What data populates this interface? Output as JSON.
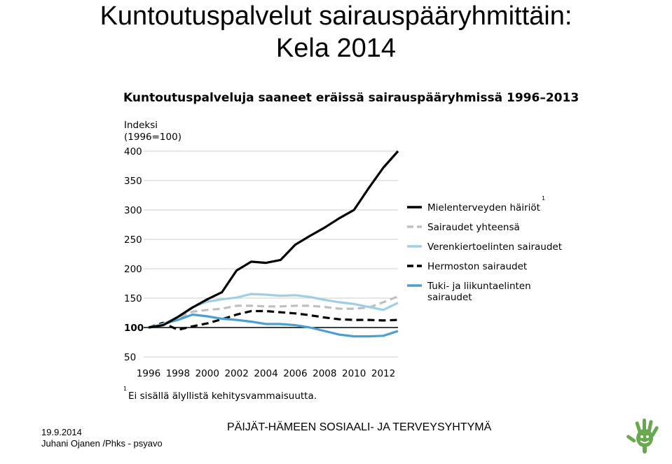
{
  "slide": {
    "title_line1": "Kuntoutuspalvelut sairauspääryhmittäin:",
    "title_line2": "Kela 2014"
  },
  "footer": {
    "date": "19.9.2014",
    "author": "Juhani Ojanen /Phks - psyavo",
    "organization": "PÄIJÄT-HÄMEEN SOSIAALI- JA TERVEYSYHTYMÄ"
  },
  "colors": {
    "mielenterveys": "#000000",
    "sairaudet_yhteensa": "#bfbfbf",
    "verenkierto": "#9ecfe6",
    "hermosto": "#000000",
    "tuki_liikunta": "#4a9fd3",
    "logo": "#6aa84f"
  },
  "icons": {
    "logo": "green-handprint-logo-icon"
  },
  "chart_data": {
    "type": "line",
    "title": "Kuntoutuspalveluja saaneet eräissä sairauspääryhmissä 1996–2013",
    "ylabel_line1": "Indeksi",
    "ylabel_line2": "(1996=100)",
    "ylim": [
      50,
      400
    ],
    "yticks": [
      50,
      100,
      150,
      200,
      250,
      300,
      350,
      400
    ],
    "xlim": [
      1996,
      2013
    ],
    "xticks": [
      1996,
      1998,
      2000,
      2002,
      2004,
      2006,
      2008,
      2010,
      2012
    ],
    "x": [
      1996,
      1997,
      1998,
      1999,
      2000,
      2001,
      2002,
      2003,
      2004,
      2005,
      2006,
      2007,
      2008,
      2009,
      2010,
      2011,
      2012,
      2013
    ],
    "grid": "horizontal",
    "legend_position": "right",
    "series": [
      {
        "name": "Mielenterveyden häiriöt",
        "superscript": "1",
        "style": "solid",
        "values": [
          100,
          104,
          118,
          134,
          148,
          160,
          197,
          212,
          210,
          215,
          241,
          256,
          270,
          286,
          300,
          337,
          372,
          400
        ]
      },
      {
        "name": "Sairaudet yhteensä",
        "style": "dashed",
        "values": [
          100,
          105,
          116,
          127,
          130,
          132,
          137,
          137,
          136,
          136,
          137,
          137,
          135,
          132,
          132,
          134,
          143,
          153
        ]
      },
      {
        "name": "Verenkiertoelinten sairaudet",
        "style": "solid",
        "values": [
          100,
          106,
          118,
          135,
          144,
          148,
          151,
          157,
          156,
          154,
          155,
          152,
          147,
          143,
          140,
          135,
          130,
          142
        ]
      },
      {
        "name": "Hermoston sairaudet",
        "style": "dashed",
        "values": [
          100,
          108,
          96,
          102,
          107,
          114,
          122,
          128,
          128,
          126,
          124,
          121,
          117,
          114,
          113,
          113,
          112,
          113
        ]
      },
      {
        "name": "Tuki- ja liikuntaelinten sairaudet",
        "name_line1": "Tuki- ja liikuntaelinten",
        "name_line2": "sairaudet",
        "style": "solid",
        "values": [
          100,
          106,
          113,
          122,
          119,
          115,
          113,
          110,
          106,
          106,
          104,
          100,
          94,
          88,
          85,
          85,
          86,
          94
        ]
      }
    ],
    "footnote_marker": "1",
    "footnote": "Ei sisällä älyllistä kehitysvammaisuutta."
  }
}
